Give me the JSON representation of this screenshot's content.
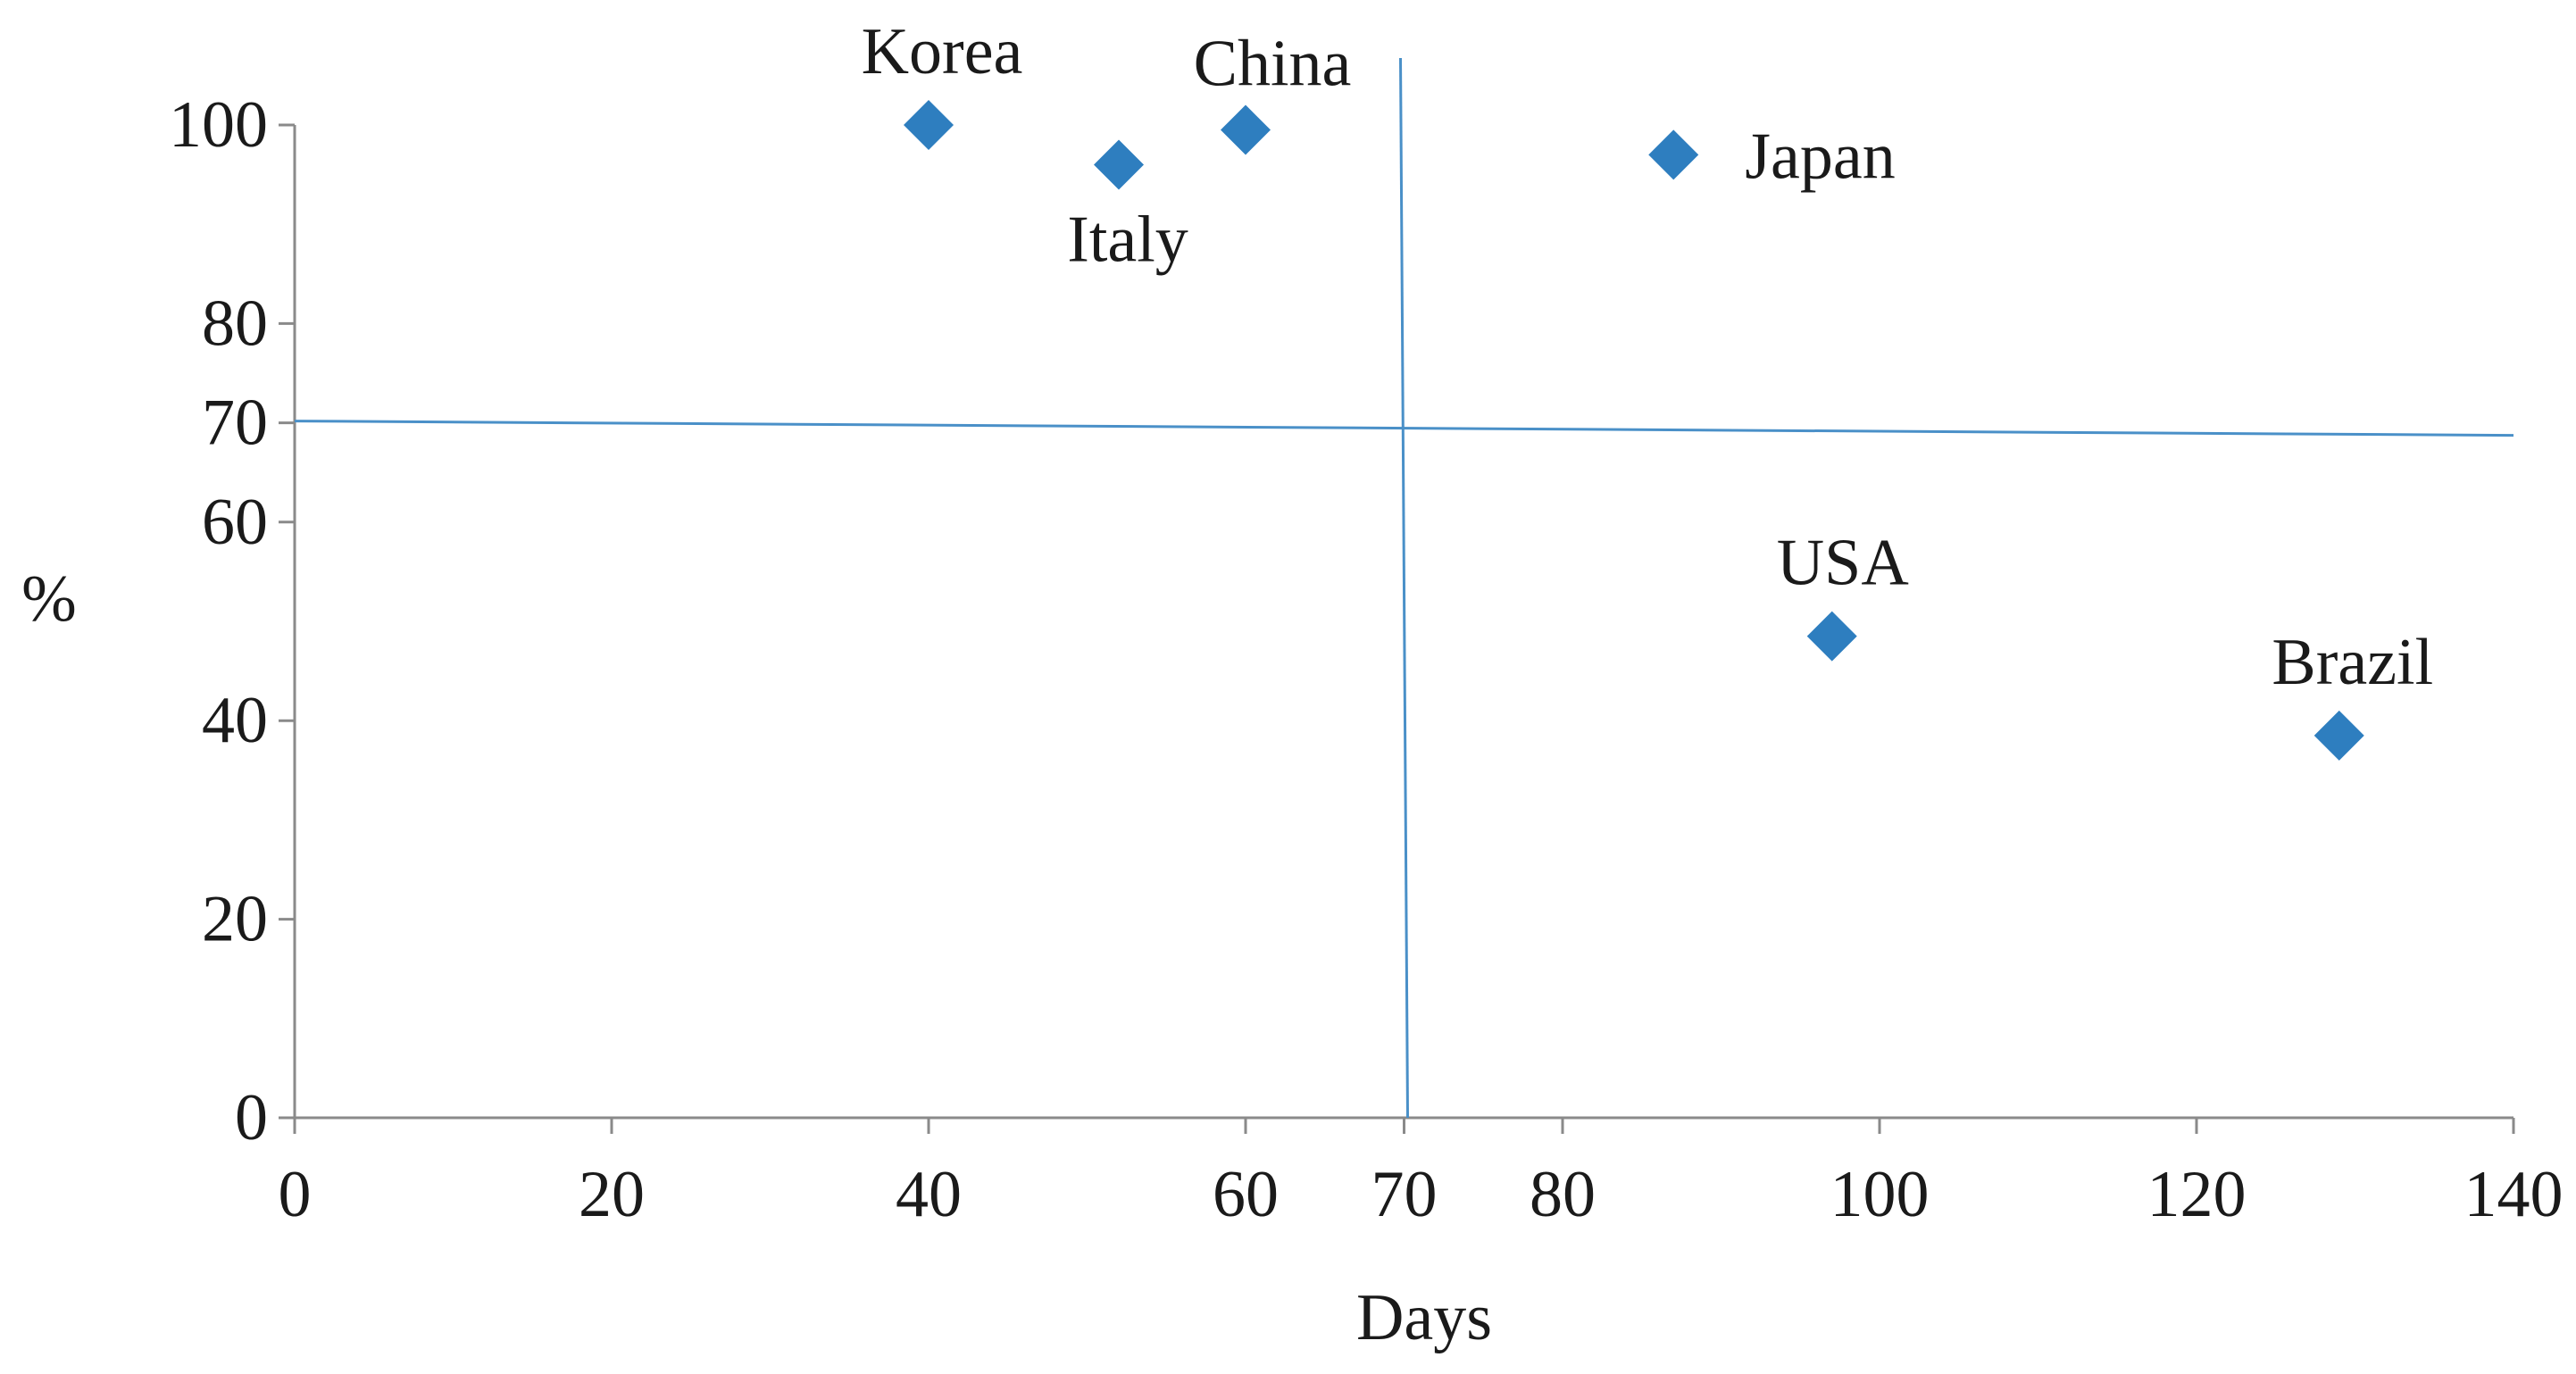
{
  "chart_data": {
    "type": "scatter",
    "xlabel": "Days",
    "ylabel": "%",
    "xlim": [
      0,
      140
    ],
    "ylim": [
      0,
      100
    ],
    "x_ticks": [
      "0",
      "20",
      "40",
      "60",
      "70",
      "80",
      "100",
      "120",
      "140"
    ],
    "y_ticks": [
      "0",
      "20",
      "40",
      "60",
      "70",
      "80",
      "100"
    ],
    "reference_lines": {
      "x": 70,
      "y": 70
    },
    "marker": "diamond",
    "marker_color": "#2E7EBF",
    "line_color": "#4A90C8",
    "grid": false,
    "legend": "none",
    "points": [
      {
        "label": "Korea",
        "x": 40,
        "y": 100
      },
      {
        "label": "Italy",
        "x": 52,
        "y": 96
      },
      {
        "label": "China",
        "x": 60,
        "y": 99.5
      },
      {
        "label": "Japan",
        "x": 87,
        "y": 97
      },
      {
        "label": "USA",
        "x": 97,
        "y": 48.5
      },
      {
        "label": "Brazil",
        "x": 129,
        "y": 38.5
      }
    ]
  }
}
